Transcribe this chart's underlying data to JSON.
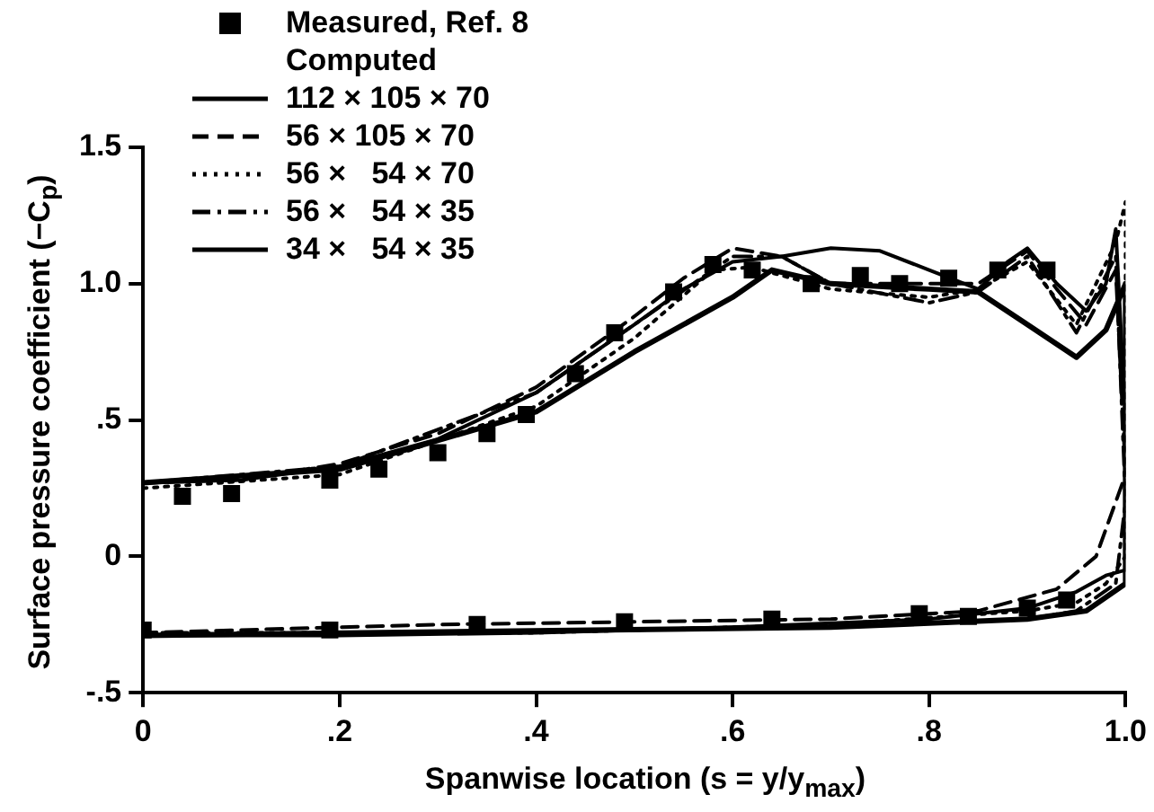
{
  "chart_data": {
    "type": "line",
    "xlabel": "Spanwise location (s = y/y$_{max}$)",
    "ylabel": "Surface pressure coefficient (−C$_{p}$)",
    "legend_title": "Computed",
    "legend": "top left",
    "grid": false,
    "xlim": [
      0,
      1.0
    ],
    "xticks": [
      0,
      {
        "value": 0.2,
        "label": ".2"
      },
      {
        "value": 0.4,
        "label": ".4"
      },
      {
        "value": 0.6,
        "label": ".6"
      },
      {
        "value": 0.8,
        "label": ".8"
      },
      {
        "value": 1.0,
        "label": "1.0"
      }
    ],
    "ylim": [
      -0.5,
      1.5
    ],
    "yticks": [
      {
        "value": -0.5,
        "label": "-.5"
      },
      0,
      {
        "value": 0.5,
        "label": ".5"
      },
      {
        "value": 1.0,
        "label": "1.0"
      },
      1.5
    ],
    "series": [
      {
        "name": "Measured, Ref. 8",
        "type": "scatter",
        "marker": "square",
        "color": "#000000",
        "x": [
          0.04,
          0.09,
          0.19,
          0.24,
          0.3,
          0.35,
          0.39,
          0.44,
          0.48,
          0.54,
          0.58,
          0.62,
          0.68,
          0.73,
          0.77,
          0.82,
          0.87,
          0.92,
          0,
          0.19,
          0.34,
          0.49,
          0.64,
          0.79,
          0.84,
          0.9,
          0.94
        ],
        "values": [
          0.22,
          0.23,
          0.28,
          0.32,
          0.38,
          0.45,
          0.52,
          0.67,
          0.82,
          0.97,
          1.07,
          1.05,
          1.0,
          1.03,
          1.0,
          1.02,
          1.05,
          1.05,
          -0.27,
          -0.27,
          -0.25,
          -0.24,
          -0.23,
          -0.21,
          -0.22,
          -0.19,
          -0.16
        ]
      },
      {
        "name": "112 × 105 × 70",
        "type": "line",
        "marker": "none",
        "line_style": "solid",
        "color": "#000000",
        "x": [
          0,
          0.1,
          0.2,
          0.3,
          0.4,
          0.5,
          0.55,
          0.6,
          0.65,
          0.7,
          0.75,
          0.8,
          0.85,
          0.88,
          0.9,
          0.93,
          0.96,
          0.98,
          0.99,
          1.0,
          1.0,
          0.98,
          0.95,
          0.9,
          0.8,
          0.6,
          0.4,
          0.2,
          0
        ],
        "values": [
          0.27,
          0.28,
          0.33,
          0.43,
          0.6,
          0.85,
          0.98,
          1.08,
          1.1,
          1.13,
          1.12,
          1.05,
          0.98,
          1.08,
          1.13,
          1.0,
          0.9,
          1.0,
          1.2,
          0.5,
          -0.05,
          -0.07,
          -0.13,
          -0.19,
          -0.23,
          -0.26,
          -0.28,
          -0.29,
          -0.29
        ]
      },
      {
        "name": "56 × 105 × 70",
        "type": "line",
        "marker": "none",
        "line_style": "dashed",
        "color": "#000000",
        "x": [
          0,
          0.1,
          0.2,
          0.3,
          0.4,
          0.5,
          0.55,
          0.6,
          0.65,
          0.7,
          0.8,
          0.85,
          0.9,
          0.93,
          0.96,
          0.99,
          1.0,
          0.99,
          0.97,
          0.93,
          0.85,
          0.7,
          0.5,
          0.3,
          0
        ],
        "values": [
          0.27,
          0.28,
          0.34,
          0.45,
          0.62,
          0.88,
          1.02,
          1.13,
          1.1,
          1.0,
          1.0,
          1.0,
          1.12,
          0.98,
          0.85,
          1.05,
          0.3,
          0.2,
          0.0,
          -0.12,
          -0.2,
          -0.23,
          -0.24,
          -0.25,
          -0.28
        ]
      },
      {
        "name": "56 ×   54 × 70",
        "type": "line",
        "marker": "none",
        "line_style": "dotted",
        "color": "#000000",
        "x": [
          0,
          0.2,
          0.4,
          0.5,
          0.58,
          0.62,
          0.7,
          0.8,
          0.85,
          0.9,
          0.95,
          0.99,
          1.0,
          1.0,
          0.98,
          0.95,
          0.9,
          0.7,
          0.4,
          0
        ],
        "values": [
          0.25,
          0.3,
          0.55,
          0.8,
          1.05,
          1.06,
          0.98,
          0.95,
          0.98,
          1.08,
          0.85,
          1.15,
          1.3,
          0.0,
          -0.1,
          -0.17,
          -0.2,
          -0.25,
          -0.28,
          -0.28
        ]
      },
      {
        "name": "56 ×   54 × 35",
        "type": "line",
        "marker": "none",
        "line_style": "dashdot",
        "color": "#000000",
        "x": [
          0,
          0.2,
          0.4,
          0.5,
          0.6,
          0.65,
          0.7,
          0.8,
          0.85,
          0.9,
          0.95,
          0.99,
          1.0,
          0.99,
          0.95,
          0.9,
          0.7,
          0
        ],
        "values": [
          0.27,
          0.33,
          0.6,
          0.85,
          1.1,
          1.1,
          1.0,
          0.93,
          0.97,
          1.1,
          0.82,
          1.1,
          0.2,
          -0.1,
          -0.2,
          -0.23,
          -0.26,
          -0.29
        ]
      },
      {
        "name": "34 ×   54 × 35",
        "type": "line",
        "marker": "none",
        "line_style": "solid",
        "color": "#000000",
        "x": [
          0,
          0.2,
          0.4,
          0.5,
          0.6,
          0.64,
          0.7,
          0.8,
          0.85,
          0.9,
          0.95,
          0.98,
          1.0,
          1.0,
          0.96,
          0.9,
          0.7,
          0
        ],
        "values": [
          0.27,
          0.32,
          0.53,
          0.75,
          0.95,
          1.05,
          1.0,
          0.98,
          0.97,
          0.85,
          0.73,
          0.83,
          1.0,
          -0.1,
          -0.2,
          -0.23,
          -0.26,
          -0.29
        ]
      }
    ]
  }
}
